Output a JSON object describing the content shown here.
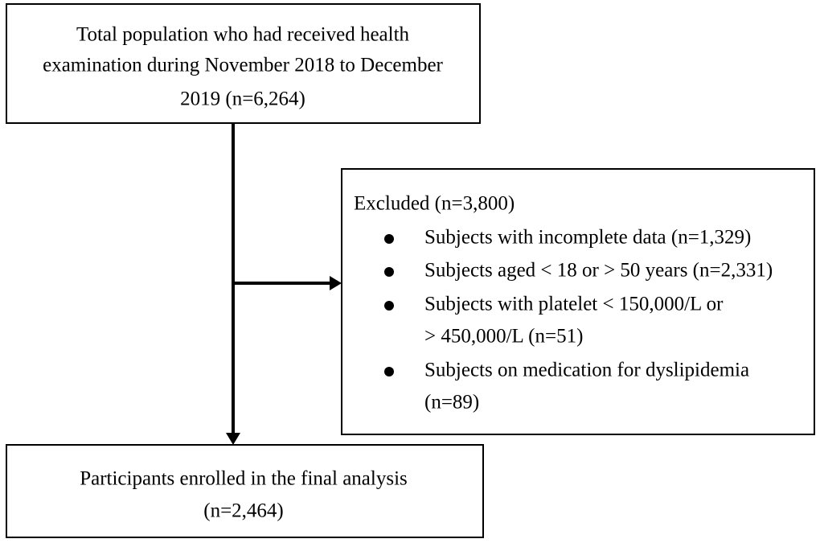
{
  "nodes": [
    {
      "lines": [
        "Total population who had received health",
        "examination during November 2018 to December",
        "2019 (n=6,264)"
      ]
    },
    {
      "title": "Excluded (n=3,800)",
      "items": [
        {
          "lines": [
            "Subjects with incomplete data (n=1,329)"
          ]
        },
        {
          "lines": [
            "Subjects aged < 18 or > 50 years (n=2,331)"
          ]
        },
        {
          "lines": [
            "Subjects with platelet < 150,000/L or",
            "> 450,000/L (n=51)"
          ]
        },
        {
          "lines": [
            "Subjects on medication for dyslipidemia",
            "(n=89)"
          ]
        }
      ]
    },
    {
      "lines": [
        "Participants enrolled in the final analysis",
        "(n=2,464)"
      ]
    }
  ]
}
